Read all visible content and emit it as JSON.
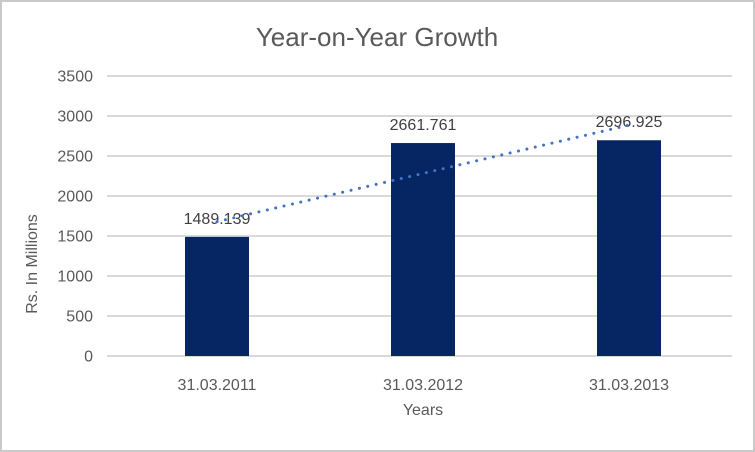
{
  "title": "Year-on-Year Growth",
  "colors": {
    "bar": "#062563",
    "trendline": "#4472C4",
    "gridline": "#D9D9D9",
    "axis_line": "#D9D9D9",
    "title_text": "#595959",
    "axis_text": "#595959",
    "data_label_text": "#404040",
    "background": "#FFFFFF",
    "frame_border": "#C9C9C9"
  },
  "chart_data": {
    "type": "bar",
    "title": "Year-on-Year Growth",
    "categories": [
      "31.03.2011",
      "31.03.2012",
      "31.03.2013"
    ],
    "values": [
      1489.139,
      2661.761,
      2696.925
    ],
    "data_labels": [
      "1489.139",
      "2661.761",
      "2696.925"
    ],
    "xlabel": "Years",
    "ylabel": "Rs. In Millions",
    "ylim": [
      0,
      3500
    ],
    "ytick_step": 500,
    "ytick_labels": [
      "0",
      "500",
      "1000",
      "1500",
      "2000",
      "2500",
      "3000",
      "3500"
    ],
    "grid": true,
    "legend": "none",
    "trendline": {
      "type": "linear",
      "style": "dotted",
      "color": "#4472C4",
      "endpoints_values": [
        1678.715,
        2886.501
      ]
    }
  }
}
